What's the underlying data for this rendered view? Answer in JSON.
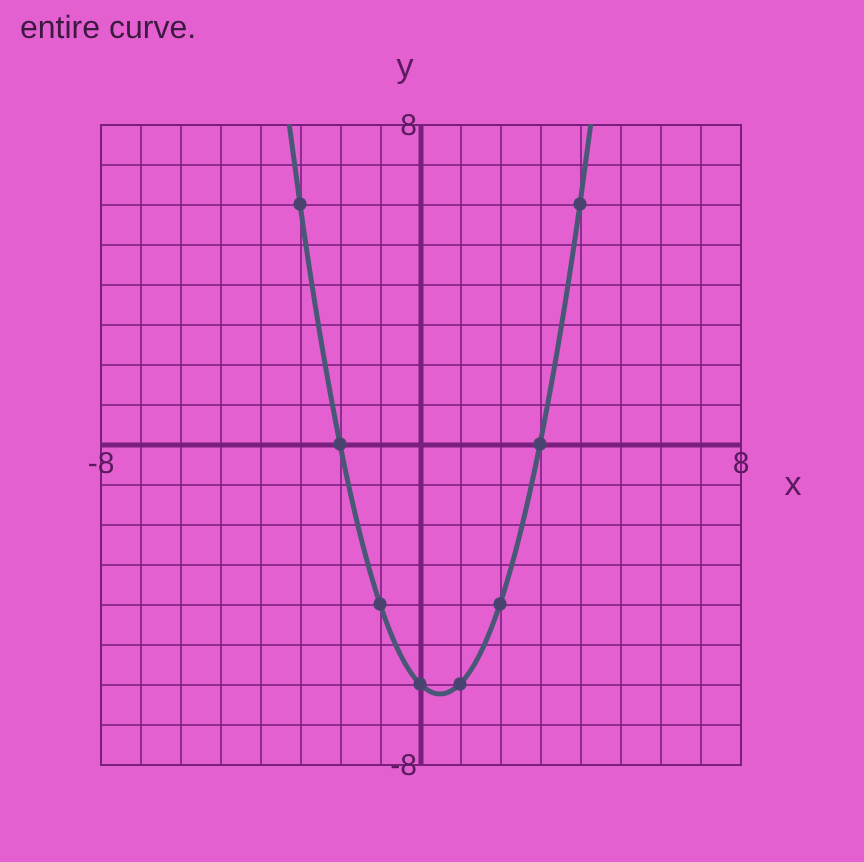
{
  "chart_data": {
    "type": "line",
    "annotations": [
      "entire curve."
    ],
    "xlabel": "x",
    "ylabel": "y",
    "xlim": [
      -8,
      8
    ],
    "ylim": [
      -8,
      8
    ],
    "xticks": [
      {
        "value": -8,
        "label": "-8"
      },
      {
        "value": -7,
        "label": null
      },
      {
        "value": -6,
        "label": null
      },
      {
        "value": -5,
        "label": null
      },
      {
        "value": -4,
        "label": null
      },
      {
        "value": -3,
        "label": null
      },
      {
        "value": -2,
        "label": null
      },
      {
        "value": -1,
        "label": null
      },
      {
        "value": 0,
        "label": null
      },
      {
        "value": 1,
        "label": null
      },
      {
        "value": 2,
        "label": null
      },
      {
        "value": 3,
        "label": null
      },
      {
        "value": 4,
        "label": null
      },
      {
        "value": 5,
        "label": null
      },
      {
        "value": 6,
        "label": null
      },
      {
        "value": 7,
        "label": null
      },
      8
    ],
    "yticks": [
      {
        "value": -8,
        "label": "-8"
      },
      {
        "value": -7,
        "label": null
      },
      {
        "value": -6,
        "label": null
      },
      {
        "value": -5,
        "label": null
      },
      {
        "value": -4,
        "label": null
      },
      {
        "value": -3,
        "label": null
      },
      {
        "value": -2,
        "label": null
      },
      {
        "value": -1,
        "label": null
      },
      {
        "value": 0,
        "label": null
      },
      {
        "value": 1,
        "label": null
      },
      {
        "value": 2,
        "label": null
      },
      {
        "value": 3,
        "label": null
      },
      {
        "value": 4,
        "label": null
      },
      {
        "value": 5,
        "label": null
      },
      {
        "value": 6,
        "label": null
      },
      {
        "value": 7,
        "label": null
      },
      8
    ],
    "grid": true,
    "line_style": "solid",
    "series": [
      {
        "type": "line",
        "color": "#4a5878",
        "x": [
          -3.27,
          -3,
          -2,
          -1,
          0,
          0.5,
          1,
          2,
          3,
          4,
          4.27
        ],
        "values": [
          8,
          6,
          0,
          -4,
          -6,
          -6.25,
          -6,
          -4,
          0,
          6,
          8
        ]
      },
      {
        "type": "scatter",
        "marker": "circle",
        "color": "#4a4470",
        "x": [
          -3,
          -2,
          -1,
          0,
          1,
          2,
          3,
          4
        ],
        "values": [
          6,
          0,
          -4,
          -6,
          -6,
          -4,
          0,
          6
        ]
      }
    ]
  }
}
